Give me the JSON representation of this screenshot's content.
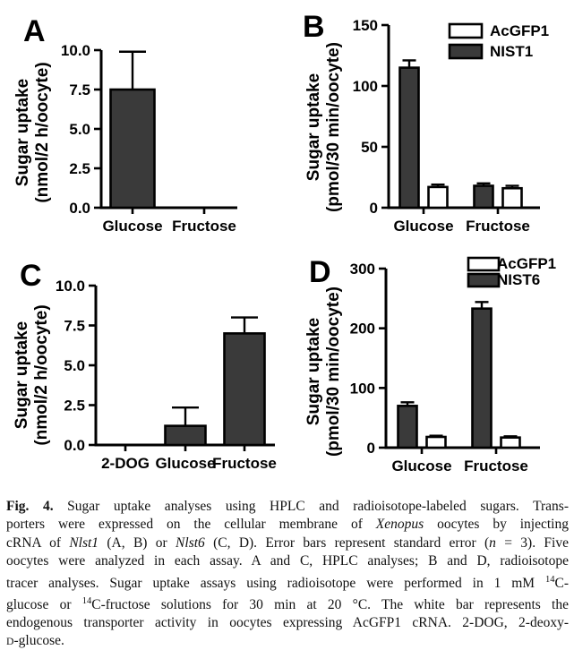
{
  "page": {
    "background": "#ffffff"
  },
  "colors": {
    "bar_dark": "#3a3a3a",
    "bar_white": "#ffffff",
    "ink": "#000000"
  },
  "chart_data": [
    {
      "type": "bar",
      "panel_label": "A",
      "ylabel_lines": [
        "Sugar uptake",
        "(nmol/2 h/oocyte)"
      ],
      "ylim": [
        0,
        10
      ],
      "ytick_values": [
        0,
        2.5,
        5,
        7.5,
        10
      ],
      "yticks": [
        "0.0",
        "2.5",
        "5.0",
        "7.5",
        "10.0"
      ],
      "categories": [
        "Glucose",
        "Fructose"
      ],
      "series": [
        {
          "name": "",
          "fill": "#3a3a3a",
          "values": [
            7.5,
            0
          ],
          "errors": [
            2.4,
            0
          ]
        }
      ],
      "legend": null,
      "grid": false
    },
    {
      "type": "bar",
      "panel_label": "B",
      "ylabel_lines": [
        "Sugar uptake",
        "(pmol/30 min/oocyte)"
      ],
      "ylim": [
        0,
        150
      ],
      "ytick_values": [
        0,
        50,
        100,
        150
      ],
      "yticks": [
        "0",
        "50",
        "100",
        "150"
      ],
      "categories": [
        "Glucose",
        "Fructose"
      ],
      "series": [
        {
          "name": "NIST1",
          "fill": "#3a3a3a",
          "values": [
            115,
            18
          ],
          "errors": [
            6,
            2
          ]
        },
        {
          "name": "AcGFP1",
          "fill": "#ffffff",
          "values": [
            17,
            16
          ],
          "errors": [
            2,
            2
          ]
        }
      ],
      "legend": [
        {
          "label": "AcGFP1",
          "fill": "#ffffff"
        },
        {
          "label": "NIST1",
          "fill": "#3a3a3a"
        }
      ],
      "legend_position": "top-right",
      "grid": false
    },
    {
      "type": "bar",
      "panel_label": "C",
      "ylabel_lines": [
        "Sugar uptake",
        "(nmol/2 h/oocyte)"
      ],
      "ylim": [
        0,
        10
      ],
      "ytick_values": [
        0,
        2.5,
        5,
        7.5,
        10
      ],
      "yticks": [
        "0.0",
        "2.5",
        "5.0",
        "7.5",
        "10.0"
      ],
      "categories": [
        "2-DOG",
        "Glucose",
        "Fructose"
      ],
      "series": [
        {
          "name": "",
          "fill": "#3a3a3a",
          "values": [
            0,
            1.2,
            7.0
          ],
          "errors": [
            0,
            1.15,
            1.0
          ]
        }
      ],
      "legend": null,
      "grid": false
    },
    {
      "type": "bar",
      "panel_label": "D",
      "ylabel_lines": [
        "Sugar uptake",
        "(pmol/30 min/oocyte)"
      ],
      "ylim": [
        0,
        300
      ],
      "ytick_values": [
        0,
        100,
        200,
        300
      ],
      "yticks": [
        "0",
        "100",
        "200",
        "300"
      ],
      "categories": [
        "Glucose",
        "Fructose"
      ],
      "series": [
        {
          "name": "NIST6",
          "fill": "#3a3a3a",
          "values": [
            70,
            233
          ],
          "errors": [
            6,
            11
          ]
        },
        {
          "name": "AcGFP1",
          "fill": "#ffffff",
          "values": [
            18,
            17
          ],
          "errors": [
            2,
            2
          ]
        }
      ],
      "legend": [
        {
          "label": "AcGFP1",
          "fill": "#ffffff"
        },
        {
          "label": "NIST6",
          "fill": "#3a3a3a"
        }
      ],
      "legend_position": "top-right",
      "grid": false
    }
  ],
  "caption": {
    "lines": [
      [
        {
          "t": "Fig. 4.",
          "s": "b"
        },
        {
          "t": " Sugar uptake analyses using HPLC and radioisotope-labeled sugars. Trans-",
          "s": "n"
        }
      ],
      [
        {
          "t": "porters were expressed on the cellular membrane of ",
          "s": "n"
        },
        {
          "t": "Xenopus",
          "s": "i"
        },
        {
          "t": " oocytes by injecting",
          "s": "n"
        }
      ],
      [
        {
          "t": "cRNA of ",
          "s": "n"
        },
        {
          "t": "Nlst1",
          "s": "i"
        },
        {
          "t": " (A, B) or ",
          "s": "n"
        },
        {
          "t": "Nlst6",
          "s": "i"
        },
        {
          "t": " (C, D). Error bars represent standard error (",
          "s": "n"
        },
        {
          "t": "n",
          "s": "i"
        },
        {
          "t": " = 3). Five",
          "s": "n"
        }
      ],
      [
        {
          "t": "oocytes were analyzed in each assay. A and C, HPLC analyses; B and D, radioisotope",
          "s": "n"
        }
      ],
      [
        {
          "t": "tracer analyses. Sugar uptake assays using radioisotope were performed in 1 mM ",
          "s": "n"
        },
        {
          "t": "14",
          "s": "sup"
        },
        {
          "t": "C-",
          "s": "n"
        }
      ],
      [
        {
          "t": "glucose or ",
          "s": "n"
        },
        {
          "t": "14",
          "s": "sup"
        },
        {
          "t": "C-fructose solutions for 30 min at 20 °C. The white bar represents the",
          "s": "n"
        }
      ],
      [
        {
          "t": "endogenous transporter activity in oocytes expressing AcGFP1 cRNA. 2-DOG, 2-deoxy-",
          "s": "n"
        }
      ],
      [
        {
          "t": "D",
          "s": "sc"
        },
        {
          "t": "-glucose.",
          "s": "n"
        }
      ]
    ]
  }
}
